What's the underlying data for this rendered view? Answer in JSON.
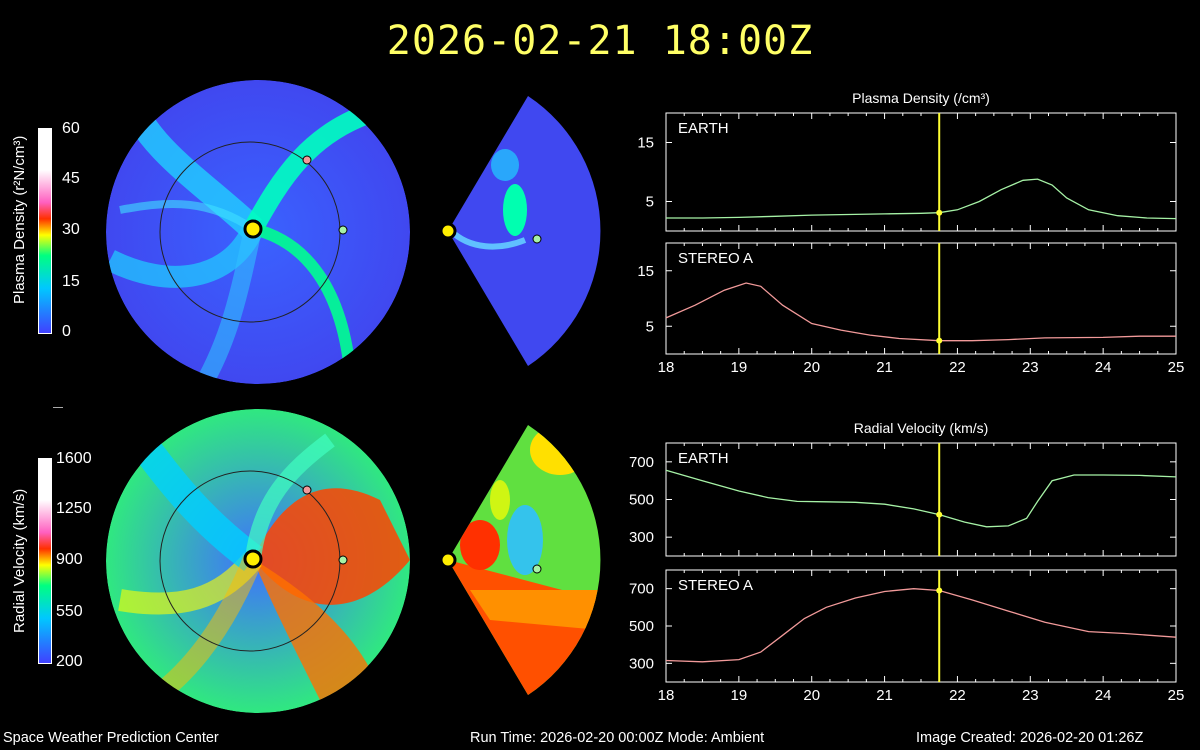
{
  "title": "2026-02-21 18:00Z",
  "density_colorbar": {
    "label": "Plasma Density (r²N/cm³)",
    "ticks": [
      "60",
      "45",
      "30",
      "15",
      "0"
    ]
  },
  "velocity_colorbar": {
    "label": "Radial Velocity (km/s)",
    "ticks": [
      "1600",
      "1250",
      "900",
      "550",
      "200"
    ]
  },
  "colors": {
    "background": "#000000",
    "title": "#ffff66",
    "earth_trace": "#a6f2a6",
    "stereo_trace": "#f29a9a",
    "marker": "#ffff33"
  },
  "footer": {
    "left": "Space Weather Prediction Center",
    "center": "Run Time: 2026-02-20 00:00Z  Mode: Ambient",
    "right": "Image Created: 2026-02-20 01:26Z"
  },
  "chart_data": [
    {
      "type": "line",
      "title": "Plasma Density (/cm³)",
      "panel": "EARTH",
      "x": [
        18,
        18.5,
        19,
        19.5,
        20,
        20.5,
        21,
        21.5,
        21.75,
        22,
        22.3,
        22.6,
        22.9,
        23.1,
        23.3,
        23.5,
        23.8,
        24.2,
        24.6,
        25
      ],
      "y": [
        2.2,
        2.2,
        2.3,
        2.5,
        2.7,
        2.8,
        2.9,
        3.0,
        3.1,
        3.6,
        5.0,
        7.0,
        8.6,
        8.8,
        7.8,
        5.6,
        3.6,
        2.6,
        2.2,
        2.1
      ],
      "xlim": [
        18,
        25
      ],
      "ylim": [
        0,
        20
      ],
      "yticks": [
        "5",
        "15"
      ],
      "marker_x": 21.75
    },
    {
      "type": "line",
      "title": "",
      "panel": "STEREO A",
      "x": [
        18,
        18.4,
        18.8,
        19.1,
        19.3,
        19.6,
        20,
        20.4,
        20.8,
        21.2,
        21.75,
        22.2,
        22.7,
        23.2,
        24,
        24.5,
        25
      ],
      "y": [
        6.5,
        8.8,
        11.5,
        12.8,
        12.2,
        8.8,
        5.5,
        4.3,
        3.4,
        2.8,
        2.4,
        2.4,
        2.6,
        2.9,
        3.0,
        3.2,
        3.2
      ],
      "xlim": [
        18,
        25
      ],
      "ylim": [
        0,
        20
      ],
      "yticks": [
        "5",
        "15"
      ],
      "xticks": [
        "18",
        "19",
        "20",
        "21",
        "22",
        "23",
        "24",
        "25"
      ],
      "marker_x": 21.75
    },
    {
      "type": "line",
      "title": "Radial Velocity (km/s)",
      "panel": "EARTH",
      "x": [
        18,
        18.5,
        19,
        19.4,
        19.8,
        20.2,
        20.6,
        21,
        21.4,
        21.75,
        22.1,
        22.4,
        22.7,
        22.95,
        23.1,
        23.3,
        23.6,
        24,
        24.5,
        25
      ],
      "y": [
        655,
        600,
        545,
        510,
        490,
        488,
        485,
        475,
        450,
        420,
        380,
        355,
        360,
        400,
        490,
        600,
        630,
        630,
        628,
        620
      ],
      "xlim": [
        18,
        25
      ],
      "ylim": [
        200,
        800
      ],
      "yticks": [
        "300",
        "500",
        "700"
      ],
      "marker_x": 21.75
    },
    {
      "type": "line",
      "title": "",
      "panel": "STEREO A",
      "x": [
        18,
        18.5,
        19,
        19.3,
        19.6,
        19.9,
        20.2,
        20.6,
        21,
        21.4,
        21.75,
        22.2,
        22.7,
        23.2,
        23.8,
        24.3,
        25
      ],
      "y": [
        315,
        308,
        320,
        360,
        450,
        540,
        600,
        650,
        685,
        700,
        690,
        640,
        580,
        520,
        470,
        460,
        440
      ],
      "xlim": [
        18,
        25
      ],
      "ylim": [
        200,
        800
      ],
      "yticks": [
        "300",
        "500",
        "700"
      ],
      "xticks": [
        "18",
        "19",
        "20",
        "21",
        "22",
        "23",
        "24",
        "25"
      ],
      "marker_x": 21.75
    }
  ]
}
